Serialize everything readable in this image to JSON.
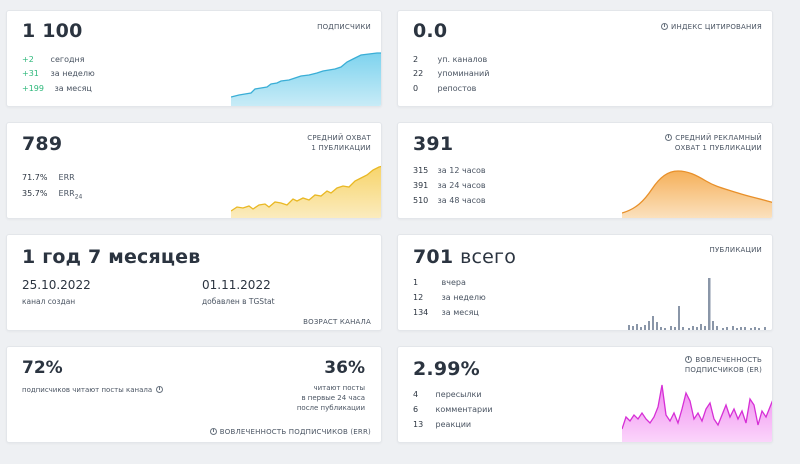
{
  "subscribers": {
    "value": "1 100",
    "tag": "ПОДПИСЧИКИ",
    "rows": [
      {
        "n": "+2",
        "label": "сегодня"
      },
      {
        "n": "+31",
        "label": "за неделю"
      },
      {
        "n": "+199",
        "label": "за месяц"
      }
    ],
    "color": "#5bc0e0"
  },
  "citation": {
    "value": "0.0",
    "tag": "ИНДЕКС ЦИТИРОВАНИЯ",
    "rows": [
      {
        "n": "2",
        "label": "уп. каналов"
      },
      {
        "n": "22",
        "label": "упоминаний"
      },
      {
        "n": "0",
        "label": "репостов"
      }
    ]
  },
  "reach": {
    "value": "789",
    "tag_line1": "СРЕДНИЙ ОХВАТ",
    "tag_line2": "1 ПУБЛИКАЦИИ",
    "rows": [
      {
        "n": "71.7%",
        "label": "ERR"
      },
      {
        "n": "35.7%",
        "label": "ERR",
        "sub": "24"
      }
    ],
    "color": "#f2c744"
  },
  "ad_reach": {
    "value": "391",
    "tag_line1": "СРЕДНИЙ РЕКЛАМНЫЙ",
    "tag_line2": "ОХВАТ 1 ПУБЛИКАЦИИ",
    "rows": [
      {
        "n": "315",
        "label": "за 12 часов"
      },
      {
        "n": "391",
        "label": "за 24 часов"
      },
      {
        "n": "510",
        "label": "за 48 часов"
      }
    ],
    "color": "#f0a040"
  },
  "age": {
    "value": "1 год 7 месяцев",
    "created_date": "25.10.2022",
    "created_label": "канал создан",
    "added_date": "01.11.2022",
    "added_label": "добавлен в TGStat",
    "tag": "ВОЗРАСТ КАНАЛА"
  },
  "posts": {
    "value": "701",
    "value_suffix": "всего",
    "tag": "ПУБЛИКАЦИИ",
    "rows": [
      {
        "n": "1",
        "label": "вчера"
      },
      {
        "n": "12",
        "label": "за неделю"
      },
      {
        "n": "134",
        "label": "за месяц"
      }
    ],
    "color": "#8a96a8"
  },
  "engagement": {
    "left_pct": "72%",
    "left_label": "подписчиков читают посты канала",
    "right_pct": "36%",
    "right_line1": "читают посты",
    "right_line2": "в первые 24 часа",
    "right_line3": "после публикации",
    "tag": "ВОВЛЕЧЕННОСТЬ ПОДПИСЧИКОВ (ERR)"
  },
  "er": {
    "value": "2.99%",
    "tag_line1": "ВОВЛЕЧЕННОСТЬ",
    "tag_line2": "ПОДПИСЧИКОВ (ER)",
    "rows": [
      {
        "n": "4",
        "label": "пересылки"
      },
      {
        "n": "6",
        "label": "комментарии"
      },
      {
        "n": "13",
        "label": "реакции"
      }
    ],
    "color": "#e040e0"
  }
}
